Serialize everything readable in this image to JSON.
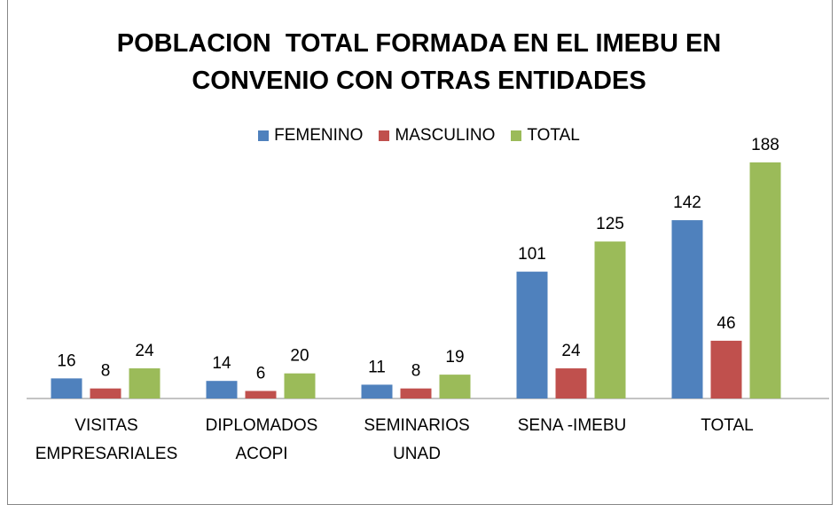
{
  "chart_data": {
    "type": "bar",
    "title": "POBLACION  TOTAL FORMADA EN EL IMEBU EN\nCONVENIO CON OTRAS ENTIDADES",
    "categories": [
      "VISITAS\nEMPRESARIALES",
      "DIPLOMADOS\nACOPI",
      "SEMINARIOS\nUNAD",
      "SENA -IMEBU",
      "TOTAL"
    ],
    "series": [
      {
        "name": "FEMENINO",
        "color": "#4f81bd",
        "values": [
          16,
          14,
          11,
          101,
          142
        ]
      },
      {
        "name": "MASCULINO",
        "color": "#c0504d",
        "values": [
          8,
          6,
          8,
          24,
          46
        ]
      },
      {
        "name": "TOTAL",
        "color": "#9bbb59",
        "values": [
          24,
          20,
          19,
          125,
          188
        ]
      }
    ],
    "legend": "top"
  }
}
